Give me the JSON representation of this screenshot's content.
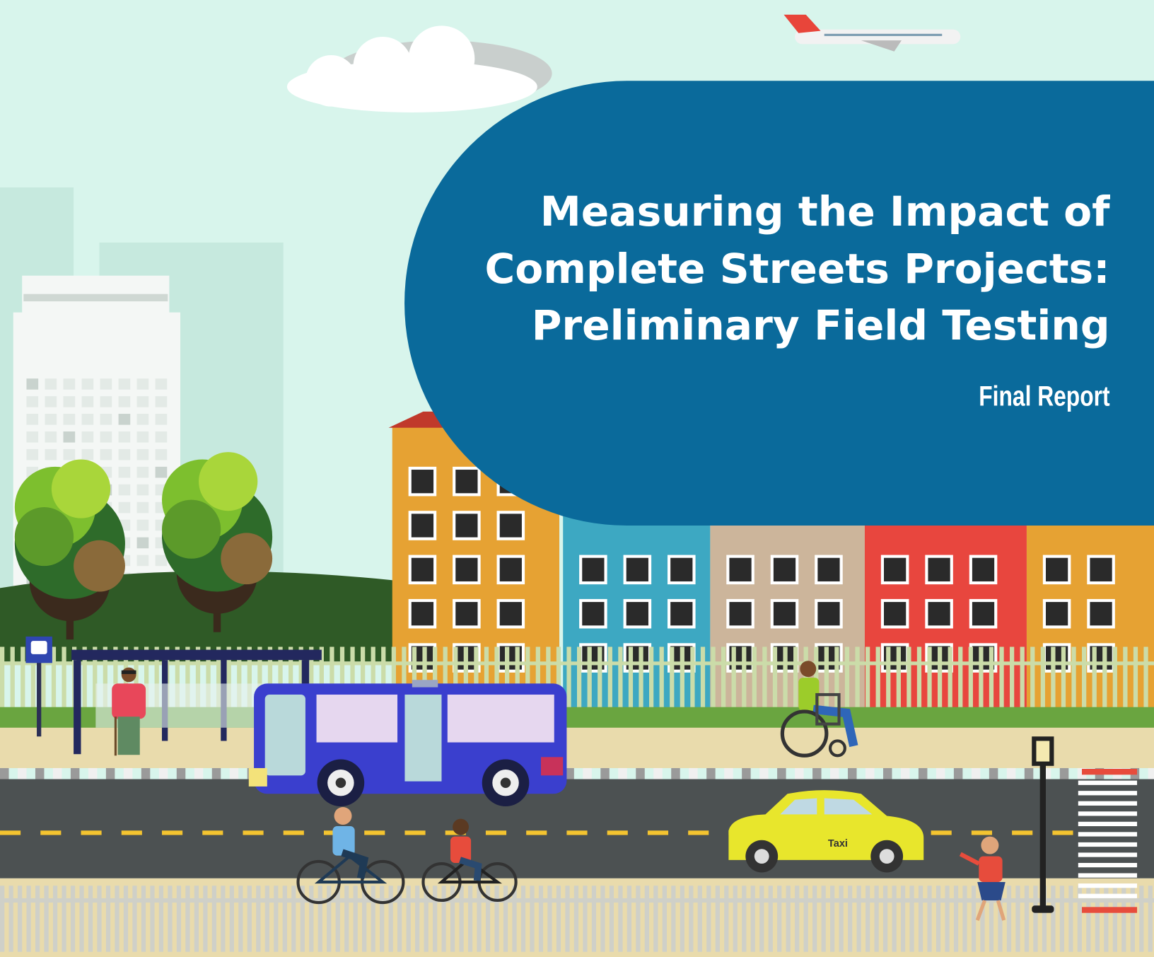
{
  "title": {
    "lines": [
      "Measuring the Impact of",
      "Complete Streets Projects:",
      "Preliminary Field Testing"
    ]
  },
  "subtitle": "Final Report",
  "illustration": {
    "taxi_label": "Taxi"
  }
}
